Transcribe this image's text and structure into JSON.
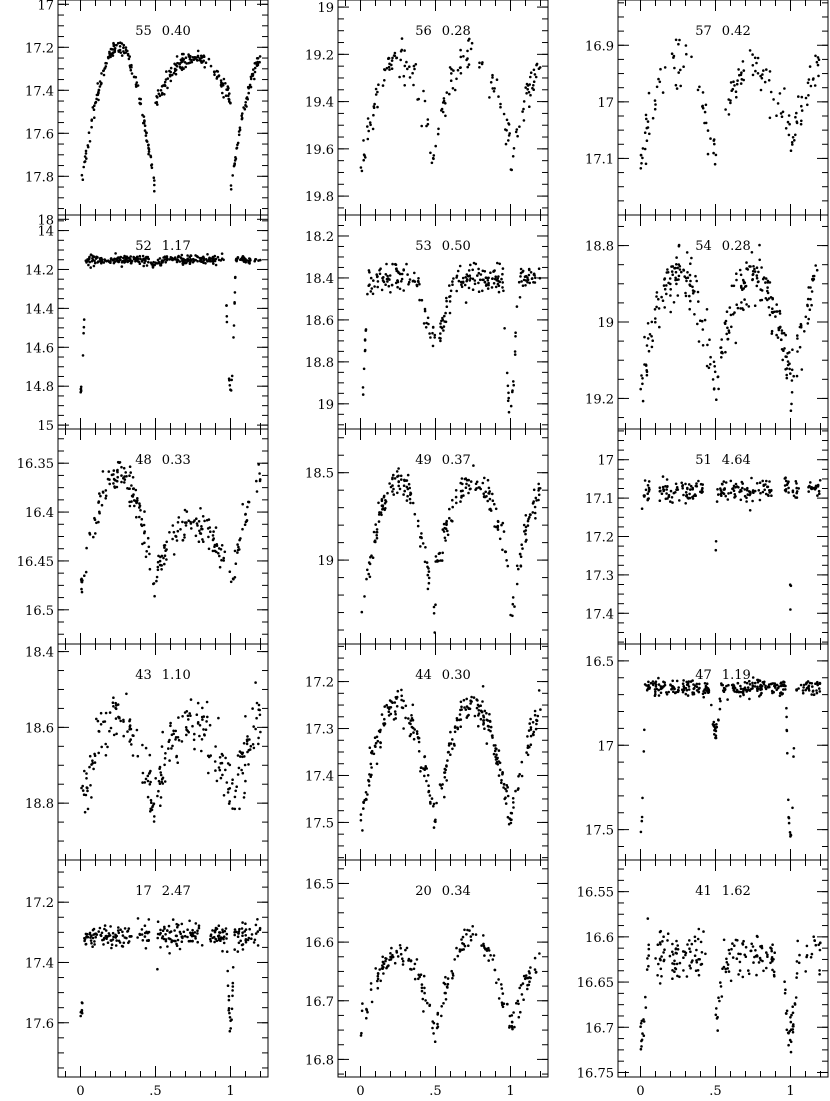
{
  "figure": {
    "chart_data": [
      {
        "type": "scatter",
        "id": "55",
        "title": "55",
        "subtitle": "0.40",
        "period": 0.4,
        "ylim": [
          17.98,
          16.98
        ],
        "y_tick_labels": [
          "17",
          "17.2",
          "17.4",
          "17.6",
          "17.8",
          "18"
        ],
        "y_ticks": [
          17,
          17.2,
          17.4,
          17.6,
          17.8,
          18
        ],
        "y_minor": 0.05,
        "x_tick_labels": [],
        "light_curve": {
          "type": "EW",
          "max1": 17.2,
          "max2": 17.25,
          "min1": 17.88,
          "min2": 17.45,
          "noise": 0.018,
          "n": 320,
          "curve_type": "eclipse"
        }
      },
      {
        "type": "scatter",
        "id": "56",
        "title": "56",
        "subtitle": "0.28",
        "period": 0.28,
        "ylim": [
          19.88,
          18.97
        ],
        "y_tick_labels": [
          "19",
          "19.2",
          "19.4",
          "19.6",
          "19.8"
        ],
        "y_ticks": [
          19,
          19.2,
          19.4,
          19.6,
          19.8
        ],
        "y_minor": 0.05,
        "x_tick_labels": [],
        "light_curve": {
          "type": "EW",
          "max1": 19.22,
          "max2": 19.2,
          "min1": 19.68,
          "min2": 19.58,
          "noise": 0.035,
          "n": 170,
          "curve_type": "eclipse"
        }
      },
      {
        "type": "scatter",
        "id": "57",
        "title": "57",
        "subtitle": "0.42",
        "period": 0.42,
        "ylim": [
          17.2,
          16.82
        ],
        "y_tick_labels": [
          "16.9",
          "17",
          "17.1"
        ],
        "y_ticks": [
          16.9,
          17,
          17.1
        ],
        "y_minor": 0.025,
        "x_tick_labels": [],
        "light_curve": {
          "type": "EW",
          "max1": 16.93,
          "max2": 16.94,
          "min1": 17.1,
          "min2": 17.07,
          "noise": 0.022,
          "n": 150,
          "curve_type": "eclipse"
        }
      },
      {
        "type": "scatter",
        "id": "52",
        "title": "52",
        "subtitle": "1.17",
        "period": 1.17,
        "ylim": [
          15.02,
          13.92
        ],
        "y_tick_labels": [
          "14",
          "14.2",
          "14.4",
          "14.6",
          "14.8",
          "15"
        ],
        "y_ticks": [
          14,
          14.2,
          14.4,
          14.6,
          14.8,
          15
        ],
        "y_minor": 0.05,
        "x_tick_labels": [],
        "light_curve": {
          "type": "EA",
          "base": 14.15,
          "min1": 14.82,
          "min2": 14.17,
          "w1": 0.035,
          "w2": 0.06,
          "noise": 0.012,
          "n": 330,
          "curve_type": "eclipse"
        }
      },
      {
        "type": "scatter",
        "id": "53",
        "title": "53",
        "subtitle": "0.50",
        "period": 0.5,
        "ylim": [
          19.12,
          18.1
        ],
        "y_tick_labels": [
          "18.2",
          "18.4",
          "18.6",
          "18.8",
          "19"
        ],
        "y_ticks": [
          18.2,
          18.4,
          18.6,
          18.8,
          19
        ],
        "y_minor": 0.05,
        "x_tick_labels": [],
        "light_curve": {
          "type": "EA",
          "base": 18.4,
          "min1": 19.0,
          "min2": 18.68,
          "w1": 0.05,
          "w2": 0.12,
          "noise": 0.03,
          "n": 260,
          "curve_type": "eclipse"
        }
      },
      {
        "type": "scatter",
        "id": "54",
        "title": "54",
        "subtitle": "0.28",
        "period": 0.28,
        "ylim": [
          19.28,
          18.72
        ],
        "y_tick_labels": [
          "18.8",
          "19",
          "19.2"
        ],
        "y_ticks": [
          18.8,
          19,
          19.2
        ],
        "y_minor": 0.05,
        "x_tick_labels": [],
        "light_curve": {
          "type": "EW",
          "max1": 18.87,
          "max2": 18.88,
          "min1": 19.17,
          "min2": 19.15,
          "noise": 0.035,
          "n": 300,
          "curve_type": "eclipse"
        }
      },
      {
        "type": "scatter",
        "id": "48",
        "title": "48",
        "subtitle": "0.33",
        "period": 0.33,
        "ylim": [
          16.535,
          16.315
        ],
        "y_tick_labels": [
          "16.35",
          "16.4",
          "16.45",
          "16.5"
        ],
        "y_ticks": [
          16.35,
          16.4,
          16.45,
          16.5
        ],
        "y_minor": 0.0125,
        "x_tick_labels": [],
        "light_curve": {
          "type": "EW",
          "max1": 16.36,
          "max2": 16.41,
          "min1": 16.48,
          "min2": 16.47,
          "noise": 0.009,
          "n": 240,
          "curve_type": "eclipse"
        }
      },
      {
        "type": "scatter",
        "id": "49",
        "title": "49",
        "subtitle": "0.37",
        "period": 0.37,
        "ylim": [
          19.48,
          18.25
        ],
        "y_tick_labels": [
          "18.5",
          "19"
        ],
        "y_ticks": [
          18.5,
          19
        ],
        "y_minor": 0.1,
        "x_tick_labels": [],
        "light_curve": {
          "type": "EW",
          "max1": 18.55,
          "max2": 18.55,
          "min1": 19.35,
          "min2": 19.05,
          "noise": 0.04,
          "n": 250,
          "curve_type": "eclipse"
        }
      },
      {
        "type": "scatter",
        "id": "51",
        "title": "51",
        "subtitle": "4.64",
        "period": 4.64,
        "ylim": [
          17.48,
          16.92
        ],
        "y_tick_labels": [
          "17",
          "17.1",
          "17.2",
          "17.3",
          "17.4"
        ],
        "y_ticks": [
          17,
          17.1,
          17.2,
          17.3,
          17.4
        ],
        "y_minor": 0.025,
        "x_tick_labels": [],
        "light_curve": {
          "type": "EA",
          "base": 17.08,
          "min1": 17.36,
          "min2": 17.25,
          "w1": 0.012,
          "w2": 0.012,
          "noise": 0.014,
          "n": 280,
          "curve_type": "eclipse",
          "gaps": [
            [
              0.06,
              0.12
            ],
            [
              0.42,
              0.5
            ],
            [
              0.88,
              0.96
            ]
          ]
        }
      },
      {
        "type": "scatter",
        "id": "43",
        "title": "43",
        "subtitle": "1.10",
        "period": 1.1,
        "ylim": [
          18.95,
          18.38
        ],
        "y_tick_labels": [
          "18.4",
          "18.6",
          "18.8"
        ],
        "y_ticks": [
          18.4,
          18.6,
          18.8
        ],
        "y_minor": 0.05,
        "x_tick_labels": [],
        "light_curve": {
          "type": "EW",
          "max1": 18.57,
          "max2": 18.58,
          "min1": 18.83,
          "min2": 18.77,
          "noise": 0.04,
          "n": 260,
          "curve_type": "eclipse"
        }
      },
      {
        "type": "scatter",
        "id": "44",
        "title": "44",
        "subtitle": "0.30",
        "period": 0.3,
        "ylim": [
          17.58,
          17.12
        ],
        "y_tick_labels": [
          "17.2",
          "17.3",
          "17.4",
          "17.5"
        ],
        "y_ticks": [
          17.2,
          17.3,
          17.4,
          17.5
        ],
        "y_minor": 0.025,
        "x_tick_labels": [],
        "light_curve": {
          "type": "EW",
          "max1": 17.25,
          "max2": 17.25,
          "min1": 17.5,
          "min2": 17.49,
          "noise": 0.018,
          "n": 300,
          "curve_type": "eclipse"
        }
      },
      {
        "type": "scatter",
        "id": "47",
        "title": "47",
        "subtitle": "1.19",
        "period": 1.19,
        "ylim": [
          17.68,
          16.4
        ],
        "y_tick_labels": [
          "16.5",
          "17",
          "17.5"
        ],
        "y_ticks": [
          16.5,
          17,
          17.5
        ],
        "y_minor": 0.1,
        "x_tick_labels": [],
        "light_curve": {
          "type": "EA",
          "base": 16.66,
          "min1": 17.55,
          "min2": 16.92,
          "w1": 0.03,
          "w2": 0.04,
          "noise": 0.025,
          "n": 320,
          "curve_type": "eclipse"
        }
      },
      {
        "type": "scatter",
        "id": "17",
        "title": "17",
        "subtitle": "2.47",
        "period": 2.47,
        "ylim": [
          17.78,
          17.06
        ],
        "y_tick_labels": [
          "17.2",
          "17.4",
          "17.6"
        ],
        "y_ticks": [
          17.2,
          17.4,
          17.6
        ],
        "y_minor": 0.05,
        "x_tick_labels": [
          "0",
          ".5",
          "1"
        ],
        "light_curve": {
          "type": "EA",
          "base": 17.31,
          "min1": 17.6,
          "min2": 17.66,
          "w1": 0.025,
          "w2": 0.015,
          "noise": 0.02,
          "n": 300,
          "curve_type": "eclipse",
          "gaps": [
            [
              0.34,
              0.38
            ],
            [
              0.46,
              0.51
            ],
            [
              0.82,
              0.86
            ]
          ]
        }
      },
      {
        "type": "scatter",
        "id": "20",
        "title": "20",
        "subtitle": "0.34",
        "period": 0.34,
        "ylim": [
          16.83,
          16.46
        ],
        "y_tick_labels": [
          "16.5",
          "16.6",
          "16.7",
          "16.8"
        ],
        "y_ticks": [
          16.5,
          16.6,
          16.7,
          16.8
        ],
        "y_minor": 0.025,
        "x_tick_labels": [
          "0",
          ".5",
          "1"
        ],
        "light_curve": {
          "type": "EW",
          "max1": 16.62,
          "max2": 16.59,
          "min1": 16.75,
          "min2": 16.75,
          "noise": 0.012,
          "n": 200,
          "curve_type": "eclipse"
        }
      },
      {
        "type": "scatter",
        "id": "41",
        "title": "41",
        "subtitle": "1.62",
        "period": 1.62,
        "ylim": [
          16.755,
          16.515
        ],
        "y_tick_labels": [
          "16.55",
          "16.6",
          "16.65",
          "16.7",
          "16.75"
        ],
        "y_ticks": [
          16.55,
          16.6,
          16.65,
          16.7,
          16.75
        ],
        "y_minor": 0.0125,
        "x_tick_labels": [
          "0",
          ".5",
          "1"
        ],
        "light_curve": {
          "type": "EA",
          "base": 16.62,
          "min1": 16.71,
          "min2": 16.69,
          "w1": 0.05,
          "w2": 0.06,
          "noise": 0.013,
          "n": 280,
          "curve_type": "eclipse",
          "gaps": [
            [
              0.06,
              0.1
            ],
            [
              0.44,
              0.5
            ],
            [
              0.9,
              0.96
            ]
          ]
        }
      }
    ]
  },
  "axes": {
    "xlim": [
      -0.15,
      1.25
    ],
    "x_ticks": [
      0,
      0.5,
      1
    ],
    "x_minor": 0.1
  }
}
